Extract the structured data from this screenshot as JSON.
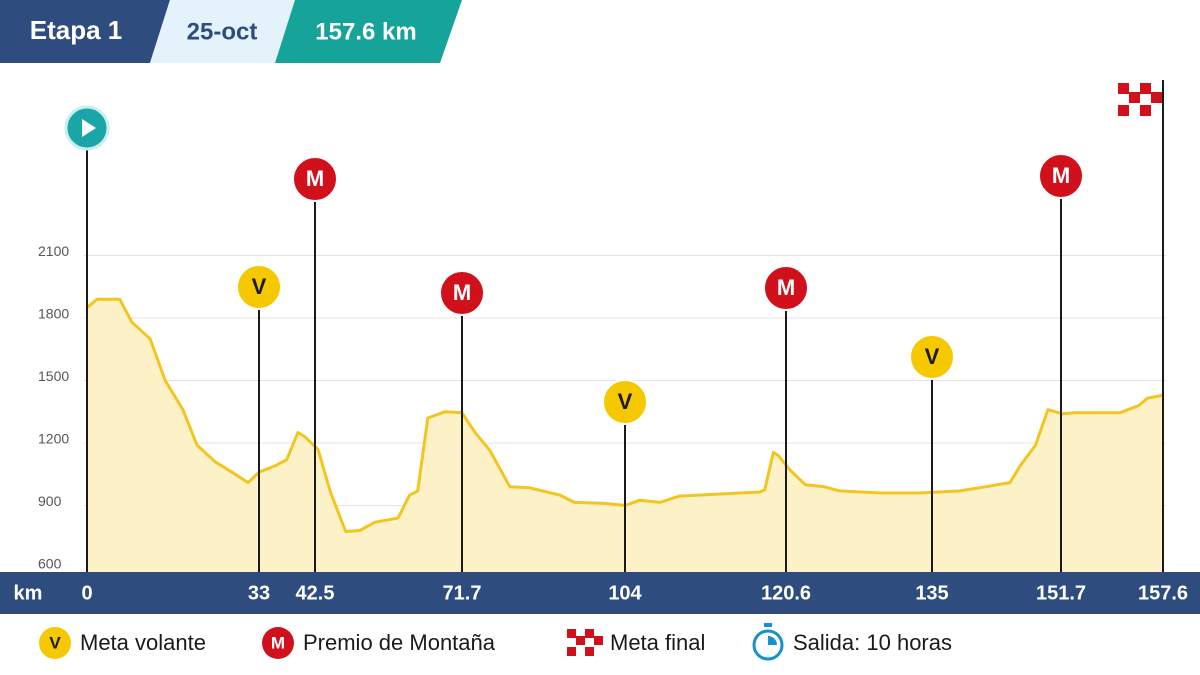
{
  "header": {
    "stage": "Etapa 1",
    "date": "25-oct",
    "distance": "157.6 km"
  },
  "chart_data": {
    "type": "area",
    "x_label": "km",
    "x": [
      0,
      1.9,
      6.3,
      8.6,
      12.1,
      15.0,
      18.4,
      21.1,
      24.6,
      27.8,
      30.9,
      33,
      35.7,
      37.7,
      39.6,
      40.8,
      43.1,
      45.5,
      46.9,
      48.6,
      51.4,
      54.4,
      59.0,
      61.3,
      62.9,
      64.9,
      68.3,
      71.7,
      74.3,
      77.2,
      81.2,
      85.1,
      91.1,
      94.0,
      100.0,
      104,
      105.5,
      107.6,
      109.6,
      113.8,
      117.9,
      118.4,
      119.3,
      119.8,
      121.0,
      122.5,
      124.4,
      125.9,
      129.9,
      133.8,
      138.6,
      141.9,
      145.1,
      146.4,
      148.4,
      150.0,
      151.8,
      152.5,
      155.1,
      156.2,
      156.7,
      157.6
    ],
    "values": [
      1850,
      1890,
      1890,
      1780,
      1700,
      1500,
      1360,
      1190,
      1110,
      1060,
      1010,
      1060,
      1090,
      1120,
      1250,
      1230,
      1170,
      970,
      880,
      775,
      780,
      820,
      840,
      950,
      970,
      1320,
      1350,
      1345,
      1250,
      1165,
      990,
      985,
      950,
      915,
      910,
      900,
      925,
      915,
      945,
      955,
      965,
      975,
      1155,
      1140,
      1070,
      1000,
      990,
      970,
      960,
      960,
      970,
      990,
      1010,
      1090,
      1190,
      1360,
      1340,
      1345,
      1345,
      1380,
      1415,
      1430
    ],
    "line_color": "#f2c61f",
    "fill_color": "#fdf1c8",
    "xlim": [
      0,
      157.6
    ],
    "xticks": [
      0,
      33,
      42.5,
      71.7,
      104,
      120.6,
      135,
      151.7,
      157.6
    ],
    "ylim": [
      600,
      2100
    ],
    "yticks": [
      600,
      900,
      1200,
      1500,
      1800,
      2100
    ],
    "grid": true,
    "start_km": 0,
    "finish_km": 157.6,
    "markers": [
      {
        "km": 33,
        "symbol": "V"
      },
      {
        "km": 42.5,
        "symbol": "M"
      },
      {
        "km": 71.7,
        "symbol": "M"
      },
      {
        "km": 104,
        "symbol": "V"
      },
      {
        "km": 120.6,
        "symbol": "M"
      },
      {
        "km": 135,
        "symbol": "V"
      },
      {
        "km": 151.7,
        "symbol": "M"
      }
    ],
    "legend": [
      {
        "symbol": "V",
        "label": "Meta volante"
      },
      {
        "symbol": "M",
        "label": "Premio de Montaña"
      },
      {
        "label": "Meta final"
      },
      {
        "label": "Salida: 10 horas"
      }
    ]
  }
}
